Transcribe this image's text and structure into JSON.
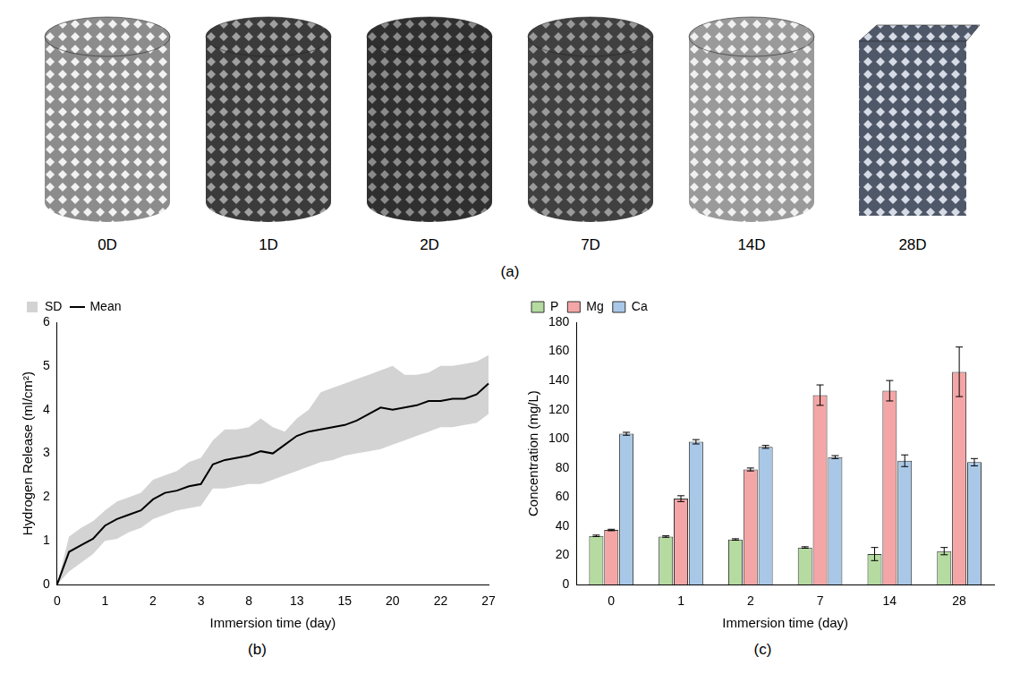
{
  "images": {
    "panel_label": "(a)",
    "labels": [
      "0D",
      "1D",
      "2D",
      "7D",
      "14D",
      "28D"
    ]
  },
  "chart_data": [
    {
      "type": "line",
      "panel_label": "(b)",
      "x_label": "Immersion time (day)",
      "y_label": "Hydrogen Release (ml/cm²)",
      "categories": [
        "0",
        null,
        null,
        null,
        "1",
        null,
        null,
        null,
        "2",
        null,
        null,
        null,
        "3",
        null,
        null,
        null,
        "8",
        null,
        null,
        null,
        "13",
        null,
        null,
        null,
        "15",
        null,
        null,
        null,
        "20",
        null,
        null,
        null,
        "22",
        null,
        null,
        null,
        "27"
      ],
      "series": [
        {
          "name": "SD",
          "type": "area",
          "color": "#d3d3d3",
          "lower": [
            0,
            0.3,
            0.5,
            0.7,
            1.0,
            1.05,
            1.2,
            1.3,
            1.5,
            1.6,
            1.7,
            1.75,
            1.8,
            2.2,
            2.2,
            2.25,
            2.3,
            2.3,
            2.4,
            2.5,
            2.6,
            2.7,
            2.8,
            2.85,
            2.95,
            3.0,
            3.05,
            3.1,
            3.2,
            3.3,
            3.4,
            3.5,
            3.6,
            3.6,
            3.65,
            3.7,
            3.9
          ],
          "upper": [
            0,
            1.1,
            1.3,
            1.45,
            1.7,
            1.9,
            2.0,
            2.1,
            2.4,
            2.5,
            2.6,
            2.8,
            2.9,
            3.3,
            3.55,
            3.55,
            3.6,
            3.8,
            3.6,
            3.5,
            3.8,
            4.0,
            4.4,
            4.5,
            4.6,
            4.7,
            4.8,
            4.9,
            5.0,
            4.8,
            4.8,
            4.85,
            5.0,
            5.0,
            5.05,
            5.1,
            5.25
          ]
        },
        {
          "name": "Mean",
          "type": "line",
          "color": "#000000",
          "values": [
            0,
            0.75,
            0.9,
            1.05,
            1.35,
            1.5,
            1.6,
            1.7,
            1.95,
            2.1,
            2.15,
            2.25,
            2.3,
            2.75,
            2.85,
            2.9,
            2.95,
            3.05,
            3.0,
            3.2,
            3.4,
            3.5,
            3.55,
            3.6,
            3.65,
            3.75,
            3.9,
            4.05,
            4.0,
            4.05,
            4.1,
            4.2,
            4.2,
            4.25,
            4.25,
            4.35,
            4.6
          ]
        }
      ],
      "ylim": [
        0,
        6
      ],
      "yticks": [
        0,
        1,
        2,
        3,
        4,
        5,
        6
      ],
      "grid": false,
      "legend": "top left"
    },
    {
      "type": "bar",
      "panel_label": "(c)",
      "x_label": "Immersion time (day)",
      "y_label": "Concentration (mg/L)",
      "categories": [
        "0",
        "1",
        "2",
        "7",
        "14",
        "28"
      ],
      "series": [
        {
          "name": "P",
          "color": "#b5dba0",
          "values": [
            33.5,
            33,
            31,
            25.5,
            21,
            23
          ],
          "errors": [
            0.5,
            0.5,
            0.5,
            0.5,
            4.5,
            2.5
          ]
        },
        {
          "name": "Mg",
          "color": "#f4a6a6",
          "values": [
            37.5,
            59,
            79,
            130,
            133,
            146
          ],
          "errors": [
            0.5,
            2,
            1,
            7,
            7,
            17
          ]
        },
        {
          "name": "Ca",
          "color": "#a9c8e8",
          "values": [
            103.5,
            98,
            94.5,
            87.5,
            85,
            84
          ],
          "errors": [
            1,
            1.5,
            1,
            1,
            4,
            2.5
          ]
        }
      ],
      "ylim": [
        0,
        180
      ],
      "yticks": [
        0,
        20,
        40,
        60,
        80,
        100,
        120,
        140,
        160,
        180
      ],
      "grid": false,
      "legend": "top left"
    }
  ]
}
